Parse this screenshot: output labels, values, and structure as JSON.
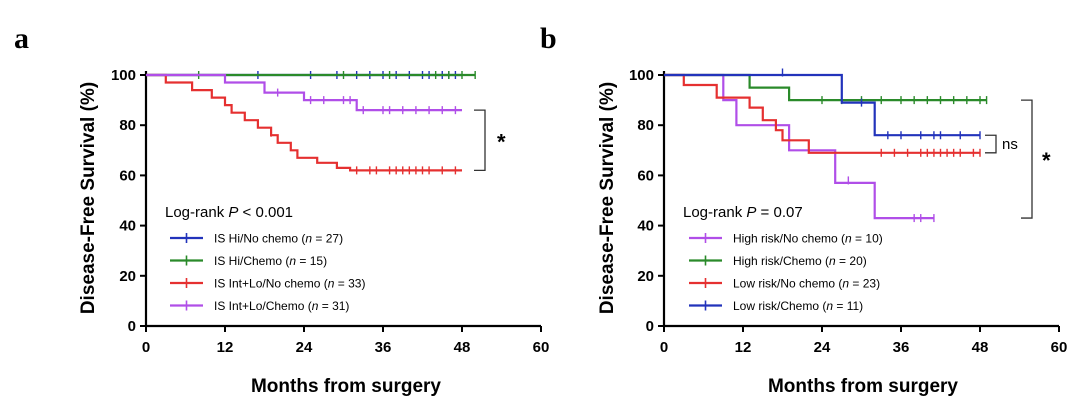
{
  "chart_data": [
    {
      "panel": "a",
      "type": "line",
      "step": true,
      "xlabel": "Months from surgery",
      "ylabel": "Disease-Free Survival (%)",
      "xlim": [
        0,
        60
      ],
      "ylim": [
        0,
        100
      ],
      "xticks": [
        "0",
        "12",
        "24",
        "36",
        "48",
        "60"
      ],
      "yticks": [
        "0",
        "20",
        "40",
        "60",
        "80",
        "100"
      ],
      "pvalue": {
        "prefix": "Log-rank ",
        "p": "P",
        "suffix": " < 0.001"
      },
      "bracket": {
        "label": "*",
        "from_y": 86,
        "to_y": 62
      },
      "series": [
        {
          "prefix": "IS Hi/No chemo (",
          "n_label": "n",
          "suffix": " = 27)",
          "color": "#2233bb",
          "steps": [
            [
              0,
              100
            ],
            [
              48,
              100
            ]
          ],
          "censors": [
            [
              17,
              100
            ],
            [
              25,
              100
            ],
            [
              29,
              100
            ],
            [
              32,
              100
            ],
            [
              34,
              100
            ],
            [
              36,
              100
            ],
            [
              38,
              100
            ],
            [
              40,
              100
            ],
            [
              42,
              100
            ],
            [
              43,
              100
            ],
            [
              45,
              100
            ],
            [
              46,
              100
            ],
            [
              47,
              100
            ]
          ]
        },
        {
          "prefix": "IS Hi/Chemo (",
          "n_label": "n",
          "suffix": " = 15)",
          "color": "#2a8a2a",
          "steps": [
            [
              0,
              100
            ],
            [
              50,
              100
            ]
          ],
          "censors": [
            [
              8,
              100
            ],
            [
              30,
              100
            ],
            [
              37,
              100
            ],
            [
              44,
              100
            ],
            [
              46,
              100
            ],
            [
              48,
              100
            ],
            [
              50,
              100
            ]
          ]
        },
        {
          "prefix": "IS Int+Lo/No chemo (",
          "n_label": "n",
          "suffix": " = 33)",
          "color": "#e53030",
          "steps": [
            [
              0,
              100
            ],
            [
              3,
              100
            ],
            [
              3,
              97
            ],
            [
              7,
              97
            ],
            [
              7,
              94
            ],
            [
              10,
              94
            ],
            [
              10,
              91
            ],
            [
              12,
              91
            ],
            [
              12,
              88
            ],
            [
              13,
              88
            ],
            [
              13,
              85
            ],
            [
              15,
              85
            ],
            [
              15,
              82
            ],
            [
              17,
              82
            ],
            [
              17,
              79
            ],
            [
              19,
              79
            ],
            [
              19,
              76
            ],
            [
              20,
              76
            ],
            [
              20,
              73
            ],
            [
              22,
              73
            ],
            [
              22,
              70
            ],
            [
              23,
              70
            ],
            [
              23,
              67
            ],
            [
              26,
              67
            ],
            [
              26,
              65
            ],
            [
              29,
              65
            ],
            [
              29,
              63
            ],
            [
              31,
              63
            ],
            [
              31,
              62
            ],
            [
              48,
              62
            ]
          ],
          "censors": [
            [
              19,
              77
            ],
            [
              32,
              62
            ],
            [
              34,
              62
            ],
            [
              35,
              62
            ],
            [
              37,
              62
            ],
            [
              38,
              62
            ],
            [
              39,
              62
            ],
            [
              40,
              62
            ],
            [
              41,
              62
            ],
            [
              42,
              62
            ],
            [
              43,
              62
            ],
            [
              45,
              62
            ],
            [
              47,
              62
            ]
          ]
        },
        {
          "prefix": "IS Int+Lo/Chemo (",
          "n_label": "n",
          "suffix": " = 31)",
          "color": "#b04ee8",
          "steps": [
            [
              0,
              100
            ],
            [
              12,
              100
            ],
            [
              12,
              97
            ],
            [
              18,
              97
            ],
            [
              18,
              93
            ],
            [
              24,
              93
            ],
            [
              24,
              90
            ],
            [
              32,
              90
            ],
            [
              32,
              86
            ],
            [
              48,
              86
            ]
          ],
          "censors": [
            [
              20,
              93
            ],
            [
              25,
              90
            ],
            [
              27,
              90
            ],
            [
              30,
              90
            ],
            [
              31,
              90
            ],
            [
              33,
              86
            ],
            [
              36,
              86
            ],
            [
              37,
              86
            ],
            [
              39,
              86
            ],
            [
              41,
              86
            ],
            [
              43,
              86
            ],
            [
              45,
              86
            ],
            [
              47,
              86
            ]
          ]
        }
      ]
    },
    {
      "panel": "b",
      "type": "line",
      "step": true,
      "xlabel": "Months from surgery",
      "ylabel": "Disease-Free Survival (%)",
      "xlim": [
        0,
        60
      ],
      "ylim": [
        0,
        100
      ],
      "xticks": [
        "0",
        "12",
        "24",
        "36",
        "48",
        "60"
      ],
      "yticks": [
        "0",
        "20",
        "40",
        "60",
        "80",
        "100"
      ],
      "pvalue": {
        "prefix": "Log-rank ",
        "p": "P",
        "suffix": " = 0.07"
      },
      "brackets": [
        {
          "label": "ns",
          "from_y": 76,
          "to_y": 69
        },
        {
          "label": "*",
          "from_y": 90,
          "to_y": 43
        }
      ],
      "series": [
        {
          "prefix": "High risk/No chemo (",
          "n_label": "n",
          "suffix": " = 10)",
          "color": "#b04ee8",
          "steps": [
            [
              0,
              100
            ],
            [
              9,
              100
            ],
            [
              9,
              90
            ],
            [
              11,
              90
            ],
            [
              11,
              80
            ],
            [
              15,
              80
            ],
            [
              15,
              80
            ],
            [
              19,
              80
            ],
            [
              19,
              70
            ],
            [
              26,
              70
            ],
            [
              26,
              57
            ],
            [
              32,
              57
            ],
            [
              32,
              43
            ],
            [
              41,
              43
            ]
          ],
          "censors": [
            [
              28,
              58
            ],
            [
              38,
              43
            ],
            [
              39,
              43
            ],
            [
              41,
              43
            ]
          ]
        },
        {
          "prefix": "High risk/Chemo (",
          "n_label": "n",
          "suffix": " = 20)",
          "color": "#2a8a2a",
          "steps": [
            [
              0,
              100
            ],
            [
              13,
              100
            ],
            [
              13,
              95
            ],
            [
              19,
              95
            ],
            [
              19,
              90
            ],
            [
              49,
              90
            ]
          ],
          "censors": [
            [
              24,
              90
            ],
            [
              27,
              90
            ],
            [
              30,
              90
            ],
            [
              33,
              90
            ],
            [
              36,
              90
            ],
            [
              38,
              90
            ],
            [
              40,
              90
            ],
            [
              42,
              90
            ],
            [
              44,
              90
            ],
            [
              46,
              90
            ],
            [
              48,
              90
            ],
            [
              49,
              90
            ]
          ]
        },
        {
          "prefix": "Low risk/No chemo (",
          "n_label": "n",
          "suffix": " = 23)",
          "color": "#e53030",
          "steps": [
            [
              0,
              100
            ],
            [
              3,
              100
            ],
            [
              3,
              96
            ],
            [
              8,
              96
            ],
            [
              8,
              91
            ],
            [
              13,
              91
            ],
            [
              13,
              87
            ],
            [
              15,
              87
            ],
            [
              15,
              82
            ],
            [
              17,
              82
            ],
            [
              17,
              78
            ],
            [
              18,
              78
            ],
            [
              18,
              74
            ],
            [
              22,
              74
            ],
            [
              22,
              69
            ],
            [
              48,
              69
            ]
          ],
          "censors": [
            [
              33,
              69
            ],
            [
              35,
              69
            ],
            [
              37,
              69
            ],
            [
              39,
              69
            ],
            [
              40,
              69
            ],
            [
              41,
              69
            ],
            [
              42,
              69
            ],
            [
              43,
              69
            ],
            [
              44,
              69
            ],
            [
              45,
              69
            ],
            [
              47,
              69
            ],
            [
              48,
              69
            ]
          ]
        },
        {
          "prefix": "Low risk/Chemo (",
          "n_label": "n",
          "suffix": " = 11)",
          "color": "#2233bb",
          "steps": [
            [
              0,
              100
            ],
            [
              27,
              100
            ],
            [
              27,
              89
            ],
            [
              32,
              89
            ],
            [
              32,
              76
            ],
            [
              48,
              76
            ]
          ],
          "censors": [
            [
              18,
              101
            ],
            [
              30,
              89
            ],
            [
              34,
              76
            ],
            [
              36,
              76
            ],
            [
              39,
              76
            ],
            [
              41,
              76
            ],
            [
              42,
              76
            ],
            [
              45,
              76
            ],
            [
              48,
              76
            ]
          ]
        }
      ]
    }
  ]
}
